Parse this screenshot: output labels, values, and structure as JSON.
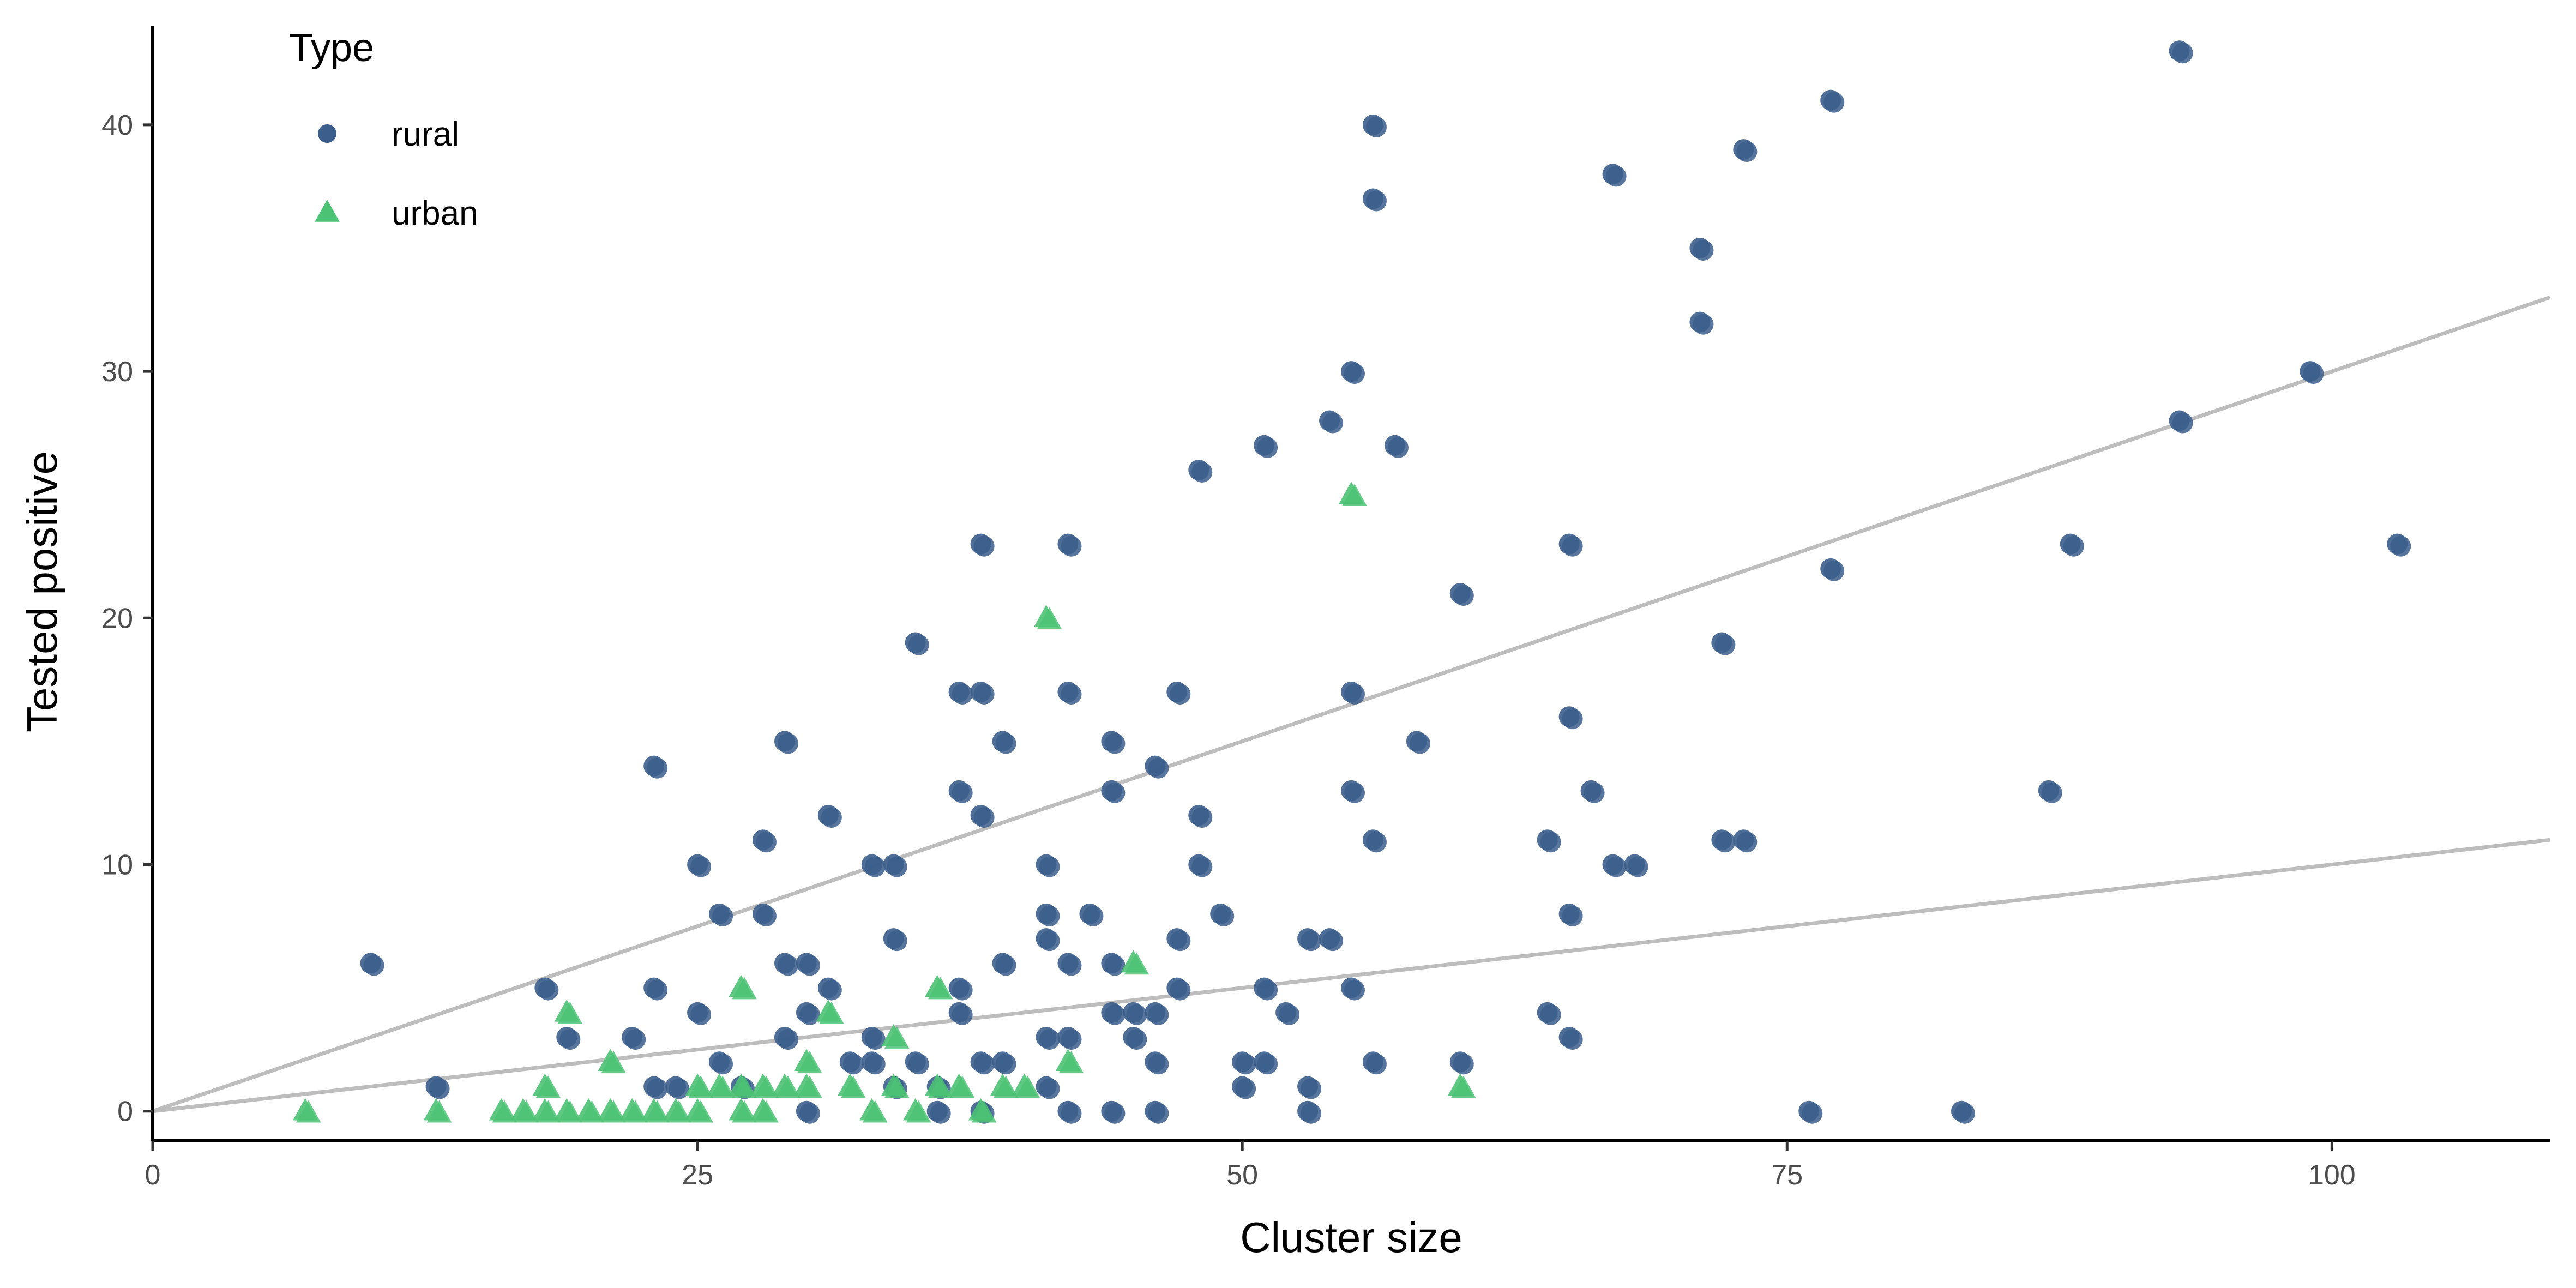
{
  "chart_data": {
    "type": "scatter",
    "xlabel": "Cluster size",
    "ylabel": "Tested positive",
    "xlim": [
      0,
      110
    ],
    "ylim": [
      -1.2,
      44
    ],
    "x_ticks": [
      0,
      25,
      50,
      75,
      100
    ],
    "y_ticks": [
      0,
      10,
      20,
      30,
      40
    ],
    "grid": false,
    "legend": {
      "title": "Type",
      "position": "top-left-inside",
      "items": [
        {
          "label": "rural",
          "shape": "circle",
          "color": "#3b5e8c"
        },
        {
          "label": "urban",
          "shape": "triangle",
          "color": "#4cc274"
        }
      ]
    },
    "reference_lines": [
      {
        "slope": 0.3,
        "intercept": 0,
        "color": "#bdbdbd"
      },
      {
        "slope": 0.1,
        "intercept": 0,
        "color": "#bdbdbd"
      }
    ],
    "series": [
      {
        "name": "rural",
        "color": "#3b5e8c",
        "shape": "circle",
        "points": [
          [
            10,
            6
          ],
          [
            13,
            1
          ],
          [
            18,
            5
          ],
          [
            19,
            3
          ],
          [
            22,
            3
          ],
          [
            23,
            14
          ],
          [
            23,
            5
          ],
          [
            23,
            1
          ],
          [
            24,
            1
          ],
          [
            25,
            10
          ],
          [
            25,
            4
          ],
          [
            26,
            2
          ],
          [
            26,
            8
          ],
          [
            27,
            1
          ],
          [
            28,
            11
          ],
          [
            28,
            8
          ],
          [
            29,
            15
          ],
          [
            29,
            6
          ],
          [
            29,
            3
          ],
          [
            30,
            6
          ],
          [
            30,
            4
          ],
          [
            30,
            0
          ],
          [
            31,
            12
          ],
          [
            31,
            5
          ],
          [
            32,
            2
          ],
          [
            33,
            10
          ],
          [
            33,
            3
          ],
          [
            33,
            2
          ],
          [
            34,
            10
          ],
          [
            34,
            7
          ],
          [
            34,
            1
          ],
          [
            35,
            19
          ],
          [
            35,
            2
          ],
          [
            36,
            0
          ],
          [
            36,
            1
          ],
          [
            37,
            17
          ],
          [
            37,
            13
          ],
          [
            37,
            5
          ],
          [
            37,
            4
          ],
          [
            38,
            23
          ],
          [
            38,
            17
          ],
          [
            38,
            12
          ],
          [
            38,
            2
          ],
          [
            38,
            0
          ],
          [
            39,
            15
          ],
          [
            39,
            6
          ],
          [
            39,
            2
          ],
          [
            41,
            10
          ],
          [
            41,
            8
          ],
          [
            41,
            7
          ],
          [
            41,
            3
          ],
          [
            41,
            1
          ],
          [
            42,
            23
          ],
          [
            42,
            17
          ],
          [
            42,
            6
          ],
          [
            42,
            3
          ],
          [
            42,
            0
          ],
          [
            43,
            8
          ],
          [
            44,
            15
          ],
          [
            44,
            13
          ],
          [
            44,
            6
          ],
          [
            44,
            4
          ],
          [
            44,
            0
          ],
          [
            45,
            4
          ],
          [
            45,
            3
          ],
          [
            46,
            14
          ],
          [
            46,
            4
          ],
          [
            46,
            2
          ],
          [
            46,
            0
          ],
          [
            47,
            17
          ],
          [
            47,
            7
          ],
          [
            47,
            5
          ],
          [
            48,
            26
          ],
          [
            48,
            12
          ],
          [
            48,
            10
          ],
          [
            49,
            8
          ],
          [
            50,
            2
          ],
          [
            50,
            1
          ],
          [
            51,
            27
          ],
          [
            51,
            5
          ],
          [
            51,
            2
          ],
          [
            52,
            4
          ],
          [
            53,
            7
          ],
          [
            53,
            1
          ],
          [
            53,
            0
          ],
          [
            54,
            28
          ],
          [
            54,
            7
          ],
          [
            55,
            30
          ],
          [
            55,
            17
          ],
          [
            55,
            13
          ],
          [
            55,
            5
          ],
          [
            56,
            40
          ],
          [
            56,
            37
          ],
          [
            56,
            11
          ],
          [
            56,
            2
          ],
          [
            57,
            27
          ],
          [
            58,
            15
          ],
          [
            60,
            21
          ],
          [
            60,
            2
          ],
          [
            64,
            11
          ],
          [
            64,
            4
          ],
          [
            65,
            23
          ],
          [
            65,
            16
          ],
          [
            65,
            8
          ],
          [
            65,
            3
          ],
          [
            66,
            13
          ],
          [
            67,
            38
          ],
          [
            67,
            10
          ],
          [
            68,
            10
          ],
          [
            71,
            35
          ],
          [
            71,
            32
          ],
          [
            72,
            19
          ],
          [
            72,
            11
          ],
          [
            73,
            39
          ],
          [
            73,
            11
          ],
          [
            76,
            0
          ],
          [
            77,
            41
          ],
          [
            77,
            22
          ],
          [
            83,
            0
          ],
          [
            87,
            13
          ],
          [
            88,
            23
          ],
          [
            93,
            43
          ],
          [
            93,
            28
          ],
          [
            99,
            30
          ],
          [
            103,
            23
          ]
        ]
      },
      {
        "name": "urban",
        "color": "#4cc274",
        "shape": "triangle",
        "points": [
          [
            7,
            0
          ],
          [
            13,
            0
          ],
          [
            16,
            0
          ],
          [
            17,
            0
          ],
          [
            18,
            1
          ],
          [
            18,
            0
          ],
          [
            19,
            4
          ],
          [
            19,
            0
          ],
          [
            20,
            0
          ],
          [
            21,
            2
          ],
          [
            21,
            0
          ],
          [
            22,
            0
          ],
          [
            23,
            0
          ],
          [
            24,
            0
          ],
          [
            25,
            1
          ],
          [
            25,
            0
          ],
          [
            26,
            1
          ],
          [
            27,
            5
          ],
          [
            27,
            1
          ],
          [
            27,
            0
          ],
          [
            28,
            1
          ],
          [
            28,
            0
          ],
          [
            29,
            1
          ],
          [
            30,
            2
          ],
          [
            30,
            1
          ],
          [
            31,
            4
          ],
          [
            32,
            1
          ],
          [
            33,
            0
          ],
          [
            34,
            3
          ],
          [
            34,
            1
          ],
          [
            35,
            0
          ],
          [
            36,
            5
          ],
          [
            36,
            1
          ],
          [
            37,
            1
          ],
          [
            38,
            0
          ],
          [
            39,
            1
          ],
          [
            40,
            1
          ],
          [
            41,
            20
          ],
          [
            42,
            2
          ],
          [
            45,
            6
          ],
          [
            55,
            25
          ],
          [
            60,
            1
          ]
        ]
      }
    ]
  }
}
